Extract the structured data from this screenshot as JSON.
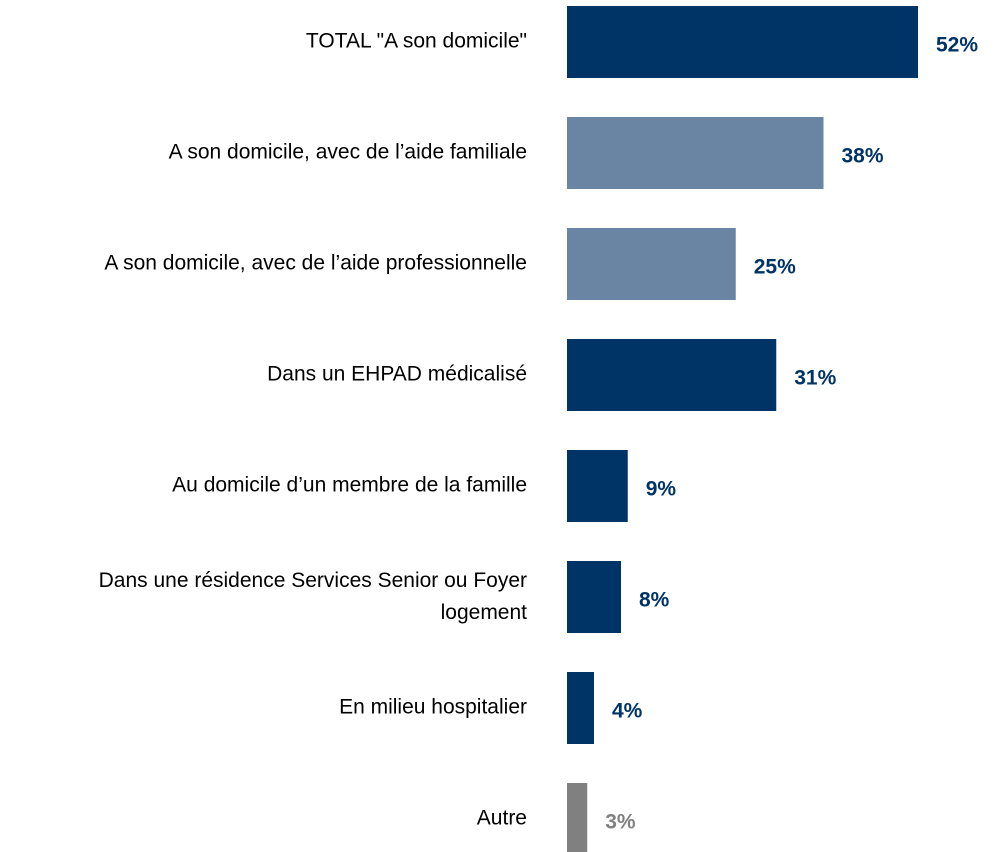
{
  "chart_data": {
    "type": "barh",
    "categories": [
      "TOTAL \"A son domicile\"",
      "A son domicile, avec de l’aide familiale",
      "A son domicile, avec de l’aide professionnelle",
      "Dans un EHPAD médicalisé",
      "Au domicile d’un membre de la famille",
      "Dans une résidence Services Senior ou Foyer logement",
      "En milieu hospitalier",
      "Autre"
    ],
    "values": [
      52,
      38,
      25,
      31,
      9,
      8,
      4,
      3
    ],
    "value_labels": [
      "52%",
      "38%",
      "25%",
      "31%",
      "9%",
      "8%",
      "4%",
      "3%"
    ],
    "colors": [
      "#003366",
      "#6985a3",
      "#6985a3",
      "#003366",
      "#003366",
      "#003366",
      "#003366",
      "#808080"
    ],
    "label_colors": [
      "#003366",
      "#003366",
      "#003366",
      "#003366",
      "#003366",
      "#003366",
      "#003366",
      "#808080"
    ]
  }
}
